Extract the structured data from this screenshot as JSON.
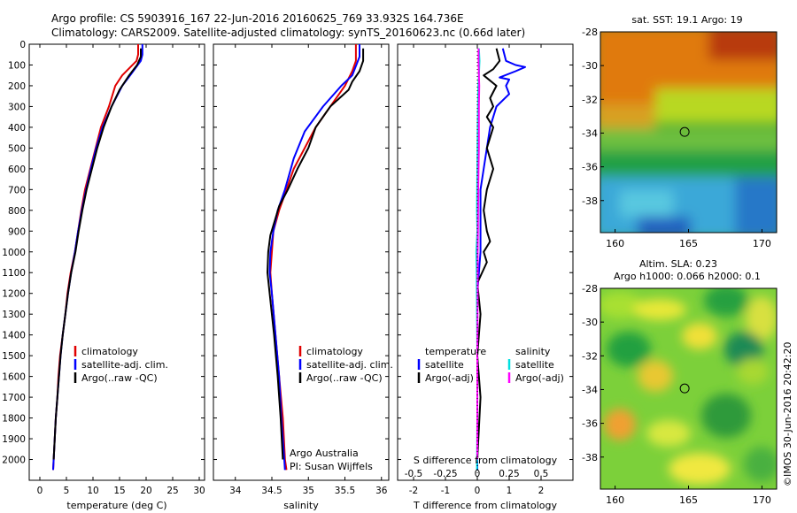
{
  "header": {
    "line1": "Argo profile: CS 5903916_167 22-Jun-2016 20160625_769 33.932S 164.736E",
    "line2": "Climatology: CARS2009. Satellite-adjusted climatology: synTS_20160623.nc (0.66d later)"
  },
  "side_text": "©IMOS 30-Jun-2016 20:42:20",
  "colors": {
    "climatology": "#e00000",
    "satellite": "#0000ff",
    "argo": "#000000",
    "salinity_satellite": "#00e0e0",
    "salinity_argo": "#ff00ff"
  },
  "chart_data": [
    {
      "type": "line",
      "name": "temperature-panel",
      "xlabel": "temperature (deg C)",
      "ylabel": "",
      "xlim": [
        -2,
        31
      ],
      "ylim": [
        2100,
        0
      ],
      "xticks": [
        0,
        5,
        10,
        15,
        20,
        25,
        30
      ],
      "yticks": [
        0,
        100,
        200,
        300,
        400,
        500,
        600,
        700,
        800,
        900,
        1000,
        1100,
        1200,
        1300,
        1400,
        1500,
        1600,
        1700,
        1800,
        1900,
        2000
      ],
      "legend": [
        "climatology",
        "satellite-adj. clim.",
        "Argo(..raw -QC)"
      ],
      "legend_position": "lower-left",
      "series": [
        {
          "name": "climatology",
          "color": "#e00000",
          "points": [
            [
              18.5,
              0
            ],
            [
              18.5,
              50
            ],
            [
              18.2,
              80
            ],
            [
              15.5,
              150
            ],
            [
              14.2,
              200
            ],
            [
              13.0,
              300
            ],
            [
              11.5,
              400
            ],
            [
              10.5,
              500
            ],
            [
              9.5,
              600
            ],
            [
              8.5,
              700
            ],
            [
              7.8,
              800
            ],
            [
              7.2,
              900
            ],
            [
              6.6,
              1000
            ],
            [
              5.8,
              1100
            ],
            [
              5.2,
              1200
            ],
            [
              4.8,
              1300
            ],
            [
              4.3,
              1400
            ],
            [
              3.8,
              1500
            ],
            [
              3.5,
              1600
            ],
            [
              3.3,
              1700
            ],
            [
              3.0,
              1800
            ],
            [
              2.8,
              1900
            ],
            [
              2.6,
              2000
            ],
            [
              2.5,
              2050
            ]
          ]
        },
        {
          "name": "satellite-adj. clim.",
          "color": "#0000ff",
          "points": [
            [
              19.3,
              0
            ],
            [
              19.3,
              50
            ],
            [
              19.0,
              80
            ],
            [
              17.0,
              150
            ],
            [
              15.5,
              200
            ],
            [
              13.5,
              300
            ],
            [
              11.8,
              400
            ],
            [
              10.6,
              500
            ],
            [
              9.6,
              600
            ],
            [
              8.7,
              700
            ],
            [
              7.9,
              800
            ],
            [
              7.2,
              900
            ],
            [
              6.6,
              1000
            ],
            [
              5.9,
              1100
            ],
            [
              5.3,
              1200
            ],
            [
              4.8,
              1300
            ],
            [
              4.3,
              1400
            ],
            [
              3.9,
              1500
            ],
            [
              3.6,
              1600
            ],
            [
              3.3,
              1700
            ],
            [
              3.0,
              1800
            ],
            [
              2.8,
              1900
            ],
            [
              2.6,
              2000
            ],
            [
              2.5,
              2050
            ]
          ]
        },
        {
          "name": "Argo(..raw -QC)",
          "color": "#000000",
          "points": [
            [
              19.0,
              20
            ],
            [
              19.0,
              60
            ],
            [
              18.3,
              100
            ],
            [
              16.8,
              150
            ],
            [
              15.0,
              220
            ],
            [
              13.5,
              300
            ],
            [
              12.0,
              400
            ],
            [
              10.8,
              500
            ],
            [
              9.8,
              600
            ],
            [
              8.8,
              700
            ],
            [
              8.0,
              800
            ],
            [
              7.3,
              900
            ],
            [
              6.7,
              1000
            ],
            [
              5.9,
              1100
            ],
            [
              5.3,
              1200
            ],
            [
              4.8,
              1300
            ],
            [
              4.3,
              1400
            ],
            [
              3.9,
              1500
            ],
            [
              3.6,
              1600
            ],
            [
              3.3,
              1700
            ],
            [
              3.0,
              1800
            ],
            [
              2.8,
              1900
            ],
            [
              2.6,
              2000
            ]
          ]
        }
      ]
    },
    {
      "type": "line",
      "name": "salinity-panel",
      "xlabel": "salinity",
      "xlim": [
        33.7,
        36.1
      ],
      "ylim": [
        2100,
        0
      ],
      "xticks": [
        34,
        34.5,
        35,
        35.5,
        36
      ],
      "legend": [
        "climatology",
        "satellite-adj. clim.",
        "Argo(..raw -QC)"
      ],
      "legend_position": "lower-right",
      "annotation": [
        "Argo Australia",
        "PI: Susan Wijffels"
      ],
      "series": [
        {
          "name": "climatology",
          "color": "#e00000",
          "points": [
            [
              35.65,
              0
            ],
            [
              35.65,
              80
            ],
            [
              35.6,
              130
            ],
            [
              35.5,
              200
            ],
            [
              35.3,
              300
            ],
            [
              35.1,
              400
            ],
            [
              34.95,
              500
            ],
            [
              34.8,
              600
            ],
            [
              34.7,
              700
            ],
            [
              34.6,
              800
            ],
            [
              34.52,
              900
            ],
            [
              34.5,
              1000
            ],
            [
              34.48,
              1100
            ],
            [
              34.5,
              1200
            ],
            [
              34.55,
              1400
            ],
            [
              34.6,
              1600
            ],
            [
              34.65,
              1800
            ],
            [
              34.68,
              2000
            ],
            [
              34.7,
              2050
            ]
          ]
        },
        {
          "name": "satellite-adj. clim.",
          "color": "#0000ff",
          "points": [
            [
              35.7,
              0
            ],
            [
              35.7,
              60
            ],
            [
              35.6,
              150
            ],
            [
              35.45,
              200
            ],
            [
              35.2,
              300
            ],
            [
              34.95,
              420
            ],
            [
              34.8,
              550
            ],
            [
              34.68,
              700
            ],
            [
              34.58,
              800
            ],
            [
              34.52,
              900
            ],
            [
              34.48,
              1000
            ],
            [
              34.47,
              1100
            ],
            [
              34.5,
              1200
            ],
            [
              34.55,
              1400
            ],
            [
              34.6,
              1600
            ],
            [
              34.63,
              1800
            ],
            [
              34.67,
              2000
            ],
            [
              34.68,
              2050
            ]
          ]
        },
        {
          "name": "Argo(..raw -QC)",
          "color": "#000000",
          "points": [
            [
              35.75,
              20
            ],
            [
              35.75,
              80
            ],
            [
              35.7,
              130
            ],
            [
              35.6,
              180
            ],
            [
              35.55,
              220
            ],
            [
              35.3,
              300
            ],
            [
              35.1,
              400
            ],
            [
              35.0,
              500
            ],
            [
              34.85,
              600
            ],
            [
              34.72,
              700
            ],
            [
              34.6,
              780
            ],
            [
              34.54,
              850
            ],
            [
              34.48,
              920
            ],
            [
              34.45,
              1000
            ],
            [
              34.44,
              1100
            ],
            [
              34.47,
              1200
            ],
            [
              34.53,
              1400
            ],
            [
              34.58,
              1600
            ],
            [
              34.62,
              1800
            ],
            [
              34.65,
              2000
            ]
          ]
        }
      ]
    },
    {
      "type": "line",
      "name": "difference-panel",
      "xlabel": "T difference from climatology",
      "top_axis_label": "S difference from climatology",
      "xlim": [
        -2.5,
        3
      ],
      "top_xlim": [
        -0.625,
        0.75
      ],
      "ylim": [
        2100,
        0
      ],
      "xticks": [
        -2,
        -1,
        0,
        1,
        2
      ],
      "top_xticks": [
        -0.5,
        -0.25,
        0,
        0.25,
        0.5
      ],
      "legend_left_title": "temperature",
      "legend_right_title": "salinity",
      "legend": [
        "satellite",
        "Argo(-adj)",
        "satellite",
        "Argo(-adj)"
      ],
      "legend_position": "lower-center",
      "series": [
        {
          "name": "temperature satellite",
          "color": "#0000ff",
          "points": [
            [
              0.8,
              20
            ],
            [
              0.9,
              80
            ],
            [
              1.2,
              100
            ],
            [
              1.5,
              110
            ],
            [
              1.2,
              130
            ],
            [
              0.7,
              160
            ],
            [
              1.0,
              170
            ],
            [
              0.9,
              200
            ],
            [
              1.0,
              240
            ],
            [
              0.6,
              300
            ],
            [
              0.4,
              400
            ],
            [
              0.3,
              500
            ],
            [
              0.2,
              600
            ],
            [
              0.1,
              700
            ],
            [
              0.1,
              800
            ],
            [
              0.1,
              1000
            ],
            [
              0.0,
              1200
            ],
            [
              0.0,
              1500
            ],
            [
              0.0,
              1800
            ],
            [
              0.0,
              2050
            ]
          ]
        },
        {
          "name": "temperature Argo(-adj)",
          "color": "#000000",
          "points": [
            [
              0.6,
              20
            ],
            [
              0.7,
              80
            ],
            [
              0.5,
              120
            ],
            [
              0.2,
              150
            ],
            [
              0.6,
              200
            ],
            [
              0.4,
              260
            ],
            [
              0.5,
              300
            ],
            [
              0.3,
              350
            ],
            [
              0.5,
              400
            ],
            [
              0.4,
              450
            ],
            [
              0.3,
              500
            ],
            [
              0.5,
              600
            ],
            [
              0.3,
              700
            ],
            [
              0.2,
              800
            ],
            [
              0.3,
              900
            ],
            [
              0.4,
              950
            ],
            [
              0.2,
              1000
            ],
            [
              0.3,
              1050
            ],
            [
              0.0,
              1150
            ],
            [
              0.1,
              1300
            ],
            [
              0.0,
              1500
            ],
            [
              0.1,
              1700
            ],
            [
              0.0,
              2000
            ]
          ]
        },
        {
          "name": "salinity satellite",
          "color": "#00e0e0",
          "points": [
            [
              0.05,
              20
            ],
            [
              0.07,
              80
            ],
            [
              0.05,
              150
            ],
            [
              0.03,
              200
            ],
            [
              0.01,
              400
            ],
            [
              0.0,
              600
            ],
            [
              -0.01,
              800
            ],
            [
              0.0,
              900
            ],
            [
              -0.03,
              1000
            ],
            [
              -0.02,
              1100
            ],
            [
              -0.01,
              1300
            ],
            [
              0.0,
              1500
            ],
            [
              0.0,
              1800
            ],
            [
              -0.01,
              2050
            ]
          ]
        },
        {
          "name": "salinity Argo(-adj)",
          "color": "#ff00ff",
          "points": [
            [
              0.04,
              20
            ],
            [
              0.04,
              80
            ],
            [
              0.05,
              150
            ],
            [
              0.06,
              200
            ],
            [
              0.05,
              300
            ],
            [
              0.05,
              500
            ],
            [
              0.04,
              600
            ],
            [
              0.03,
              700
            ],
            [
              0.02,
              900
            ],
            [
              0.01,
              1000
            ],
            [
              0.01,
              1200
            ],
            [
              0.0,
              1500
            ],
            [
              0.0,
              1800
            ],
            [
              0.0,
              2000
            ]
          ]
        }
      ]
    },
    {
      "type": "heatmap",
      "name": "sst-map",
      "title": "sat. SST: 19.1 Argo: 19",
      "xlim": [
        159,
        171
      ],
      "ylim": [
        -39.9,
        -28
      ],
      "xticks": [
        160,
        165,
        170
      ],
      "yticks": [
        -28,
        -30,
        -32,
        -34,
        -36,
        -38
      ],
      "marker": [
        164.736,
        -33.932
      ]
    },
    {
      "type": "heatmap",
      "name": "sla-map",
      "title": "Altim. SLA: 0.23",
      "subtitle": "Argo h1000: 0.066 h2000: 0.1",
      "xlim": [
        159,
        171
      ],
      "ylim": [
        -39.9,
        -28
      ],
      "xticks": [
        160,
        165,
        170
      ],
      "yticks": [
        -28,
        -30,
        -32,
        -34,
        -36,
        -38
      ],
      "marker": [
        164.736,
        -33.932
      ]
    }
  ]
}
